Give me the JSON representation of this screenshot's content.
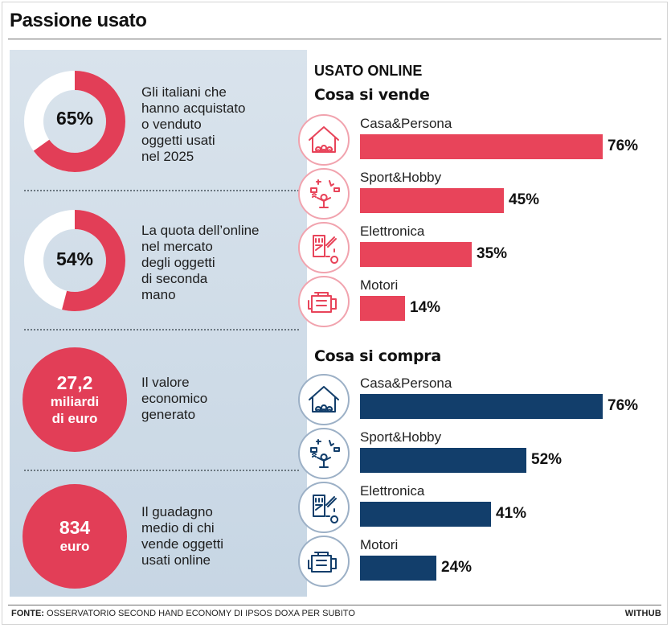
{
  "header": {
    "title": "Passione usato"
  },
  "left": {
    "stats": [
      {
        "value": "65%",
        "percent": 65,
        "lines": [
          "Gli italiani che",
          "hanno acquistato",
          "o venduto",
          "oggetti usati",
          "nel 2025"
        ]
      },
      {
        "value": "54%",
        "percent": 54,
        "lines": [
          "La quota dell’online",
          "nel mercato",
          "degli oggetti",
          "di seconda",
          "mano"
        ]
      },
      {
        "value_top": "27,2",
        "value_bottom_1": "miliardi",
        "value_bottom_2": "di euro",
        "lines": [
          "Il valore",
          "economico",
          "generato"
        ]
      },
      {
        "value_top": "834",
        "value_bottom_1": "euro",
        "lines": [
          "Il guadagno",
          "medio di chi",
          "vende oggetti",
          "usati online"
        ]
      }
    ]
  },
  "right": {
    "title": "USATO ONLINE",
    "sell_title": "Cosa si vende",
    "buy_title": "Cosa si compra"
  },
  "colors": {
    "sell": "#e8445a",
    "buy": "#123e6b",
    "donut_fill": "#e23e57",
    "donut_track": "#ffffff"
  },
  "icons": [
    "house-family-icon",
    "hobby-person-icon",
    "electronics-circuit-icon",
    "engine-icon"
  ],
  "chart_data": [
    {
      "type": "bar",
      "title": "Cosa si vende",
      "categories": [
        "Casa&Persona",
        "Sport&Hobby",
        "Elettronica",
        "Motori"
      ],
      "values": [
        76,
        45,
        35,
        14
      ],
      "value_labels": [
        "76%",
        "45%",
        "35%",
        "14%"
      ],
      "orientation": "horizontal",
      "xlim": [
        0,
        76
      ]
    },
    {
      "type": "bar",
      "title": "Cosa si compra",
      "categories": [
        "Casa&Persona",
        "Sport&Hobby",
        "Elettronica",
        "Motori"
      ],
      "values": [
        76,
        52,
        41,
        24
      ],
      "value_labels": [
        "76%",
        "52%",
        "41%",
        "24%"
      ],
      "orientation": "horizontal",
      "xlim": [
        0,
        76
      ]
    }
  ],
  "footer": {
    "source_label": "FONTE:",
    "source_text": "OSSERVATORIO SECOND HAND ECONOMY DI IPSOS DOXA PER SUBITO",
    "brand": "WITHUB"
  }
}
